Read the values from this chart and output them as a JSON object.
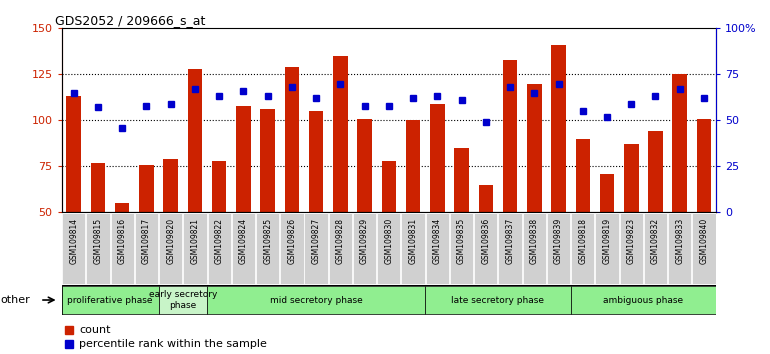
{
  "title": "GDS2052 / 209666_s_at",
  "samples": [
    "GSM109814",
    "GSM109815",
    "GSM109816",
    "GSM109817",
    "GSM109820",
    "GSM109821",
    "GSM109822",
    "GSM109824",
    "GSM109825",
    "GSM109826",
    "GSM109827",
    "GSM109828",
    "GSM109829",
    "GSM109830",
    "GSM109831",
    "GSM109834",
    "GSM109835",
    "GSM109836",
    "GSM109837",
    "GSM109838",
    "GSM109839",
    "GSM109818",
    "GSM109819",
    "GSM109823",
    "GSM109832",
    "GSM109833",
    "GSM109840"
  ],
  "count": [
    113,
    77,
    55,
    76,
    79,
    128,
    78,
    108,
    106,
    129,
    105,
    135,
    101,
    78,
    100,
    109,
    85,
    65,
    133,
    120,
    141,
    90,
    71,
    87,
    94,
    125,
    101
  ],
  "percentile": [
    65,
    57,
    46,
    58,
    59,
    67,
    63,
    66,
    63,
    68,
    62,
    70,
    58,
    58,
    62,
    63,
    61,
    49,
    68,
    65,
    70,
    55,
    52,
    59,
    63,
    67,
    62
  ],
  "phases": [
    {
      "label": "proliferative phase",
      "start": 0,
      "end": 4,
      "color": "#90EE90"
    },
    {
      "label": "early secretory\nphase",
      "start": 4,
      "end": 6,
      "color": "#c8f4c8"
    },
    {
      "label": "mid secretory phase",
      "start": 6,
      "end": 15,
      "color": "#90EE90"
    },
    {
      "label": "late secretory phase",
      "start": 15,
      "end": 21,
      "color": "#90EE90"
    },
    {
      "label": "ambiguous phase",
      "start": 21,
      "end": 27,
      "color": "#90EE90"
    }
  ],
  "ylim_left": [
    50,
    150
  ],
  "ylim_right": [
    0,
    100
  ],
  "yticks_left": [
    50,
    75,
    100,
    125,
    150
  ],
  "yticks_right": [
    0,
    25,
    50,
    75,
    100
  ],
  "ytick_labels_right": [
    "0",
    "25",
    "50",
    "75",
    "100%"
  ],
  "bar_color": "#cc2200",
  "dot_color": "#0000cc",
  "bg_color": "#ffffff",
  "tick_bg_color": "#d0d0d0",
  "legend_count_label": "count",
  "legend_pct_label": "percentile rank within the sample",
  "other_label": "other"
}
